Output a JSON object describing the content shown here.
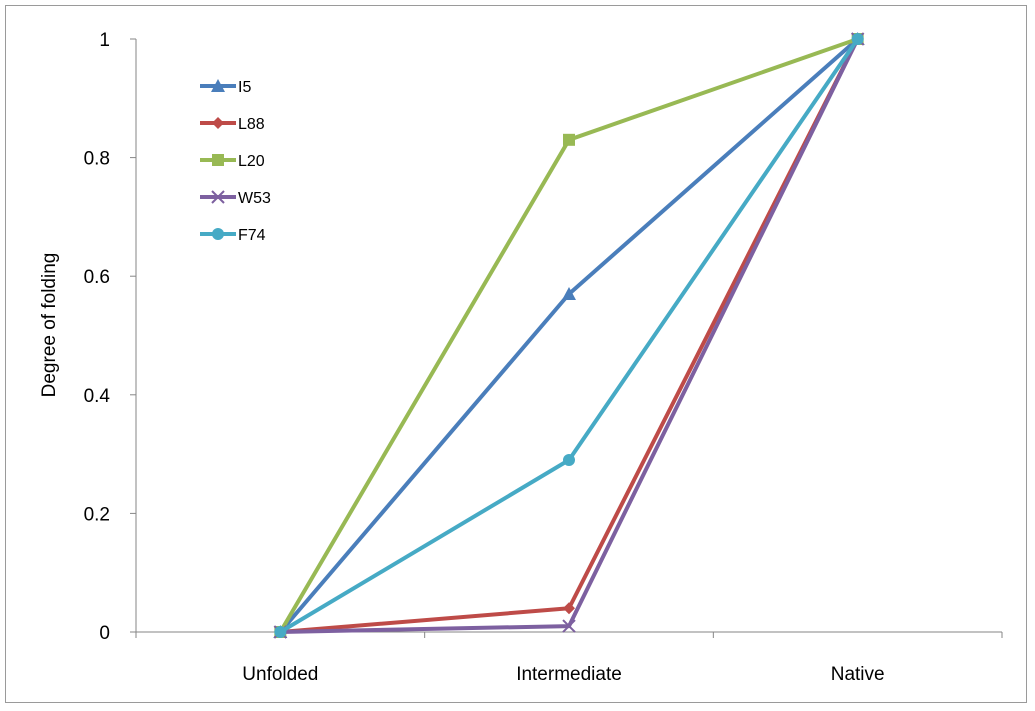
{
  "chart_data": {
    "type": "line",
    "title": "",
    "xlabel": "",
    "ylabel": "Degree of folding",
    "categories": [
      "Unfolded",
      "Intermediate",
      "Native"
    ],
    "yticks": [
      "0",
      "0.2",
      "0.4",
      "0.6",
      "0.8",
      "1"
    ],
    "ylim": [
      0,
      1
    ],
    "grid": false,
    "legend_position": "top-left",
    "series": [
      {
        "name": "I5",
        "values": [
          0,
          0.57,
          1
        ],
        "color": "#4a7ebb",
        "marker": "triangle"
      },
      {
        "name": "L88",
        "values": [
          0,
          0.04,
          1
        ],
        "color": "#be4b48",
        "marker": "diamond"
      },
      {
        "name": "L20",
        "values": [
          0,
          0.83,
          1
        ],
        "color": "#98b954",
        "marker": "square"
      },
      {
        "name": "W53",
        "values": [
          0,
          0.01,
          1
        ],
        "color": "#7d60a0",
        "marker": "x"
      },
      {
        "name": "F74",
        "values": [
          0,
          0.29,
          1
        ],
        "color": "#46aac5",
        "marker": "circle"
      }
    ]
  }
}
